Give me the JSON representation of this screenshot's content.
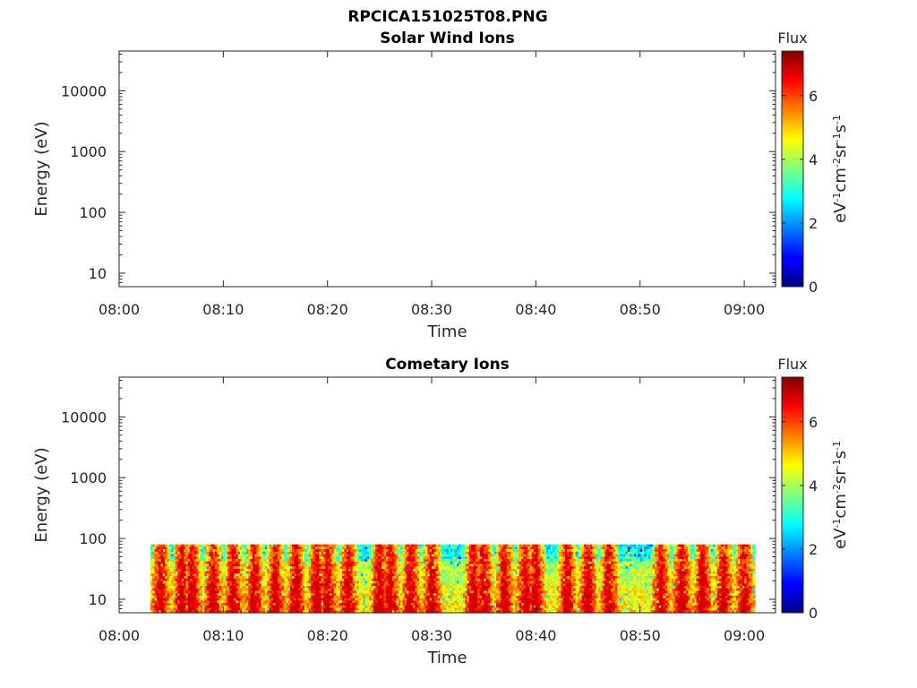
{
  "figure": {
    "title": "RPCICA151025T08.PNG"
  },
  "chart_data": [
    {
      "type": "heatmap",
      "title": "Solar Wind Ions",
      "xlabel": "Time",
      "ylabel": "Energy (eV)",
      "x_ticks": [
        "08:00",
        "08:10",
        "08:20",
        "08:30",
        "08:40",
        "08:50",
        "09:00"
      ],
      "xlim": [
        "08:00",
        "09:03"
      ],
      "y_scale": "log",
      "y_ticks": [
        10,
        100,
        1000,
        10000
      ],
      "ylim": [
        6,
        45000
      ],
      "colorbar": {
        "title": "Flux",
        "label": "eV-1cm-2sr-1s-1",
        "label_parts": [
          {
            "t": "eV",
            "sup": false
          },
          {
            "t": "-1",
            "sup": true
          },
          {
            "t": "cm",
            "sup": false
          },
          {
            "t": "-2",
            "sup": true
          },
          {
            "t": "sr",
            "sup": false
          },
          {
            "t": "-1",
            "sup": true
          },
          {
            "t": "s",
            "sup": false
          },
          {
            "t": "-1",
            "sup": true
          }
        ],
        "ticks": [
          0,
          2,
          4,
          6
        ],
        "range": [
          0,
          7.4
        ],
        "colormap": "jet"
      },
      "data_present": false
    },
    {
      "type": "heatmap",
      "title": "Cometary Ions",
      "xlabel": "Time",
      "ylabel": "Energy (eV)",
      "x_ticks": [
        "08:00",
        "08:10",
        "08:20",
        "08:30",
        "08:40",
        "08:50",
        "09:00"
      ],
      "xlim": [
        "08:00",
        "09:03"
      ],
      "y_scale": "log",
      "y_ticks": [
        10,
        100,
        1000,
        10000
      ],
      "ylim": [
        6,
        45000
      ],
      "colorbar": {
        "title": "Flux",
        "label": "eV-1cm-2sr-1s-1",
        "label_parts": [
          {
            "t": "eV",
            "sup": false
          },
          {
            "t": "-1",
            "sup": true
          },
          {
            "t": "cm",
            "sup": false
          },
          {
            "t": "-2",
            "sup": true
          },
          {
            "t": "sr",
            "sup": false
          },
          {
            "t": "-1",
            "sup": true
          },
          {
            "t": "s",
            "sup": false
          },
          {
            "t": "-1",
            "sup": true
          }
        ],
        "ticks": [
          0,
          2,
          4,
          6
        ],
        "range": [
          0,
          7.4
        ],
        "colormap": "jet"
      },
      "data_present": true,
      "data_time_range": [
        "08:03",
        "09:01"
      ],
      "data_energy_range": [
        6,
        80
      ],
      "high_flux_column_times": [
        "08:04",
        "08:06",
        "08:07",
        "08:09",
        "08:11",
        "08:13",
        "08:15",
        "08:17",
        "08:19",
        "08:20",
        "08:22",
        "08:25",
        "08:26",
        "08:28",
        "08:30",
        "08:34",
        "08:35",
        "08:37",
        "08:39",
        "08:40",
        "08:43",
        "08:45",
        "08:47",
        "08:52",
        "08:54",
        "08:56",
        "08:58",
        "09:00"
      ]
    }
  ]
}
